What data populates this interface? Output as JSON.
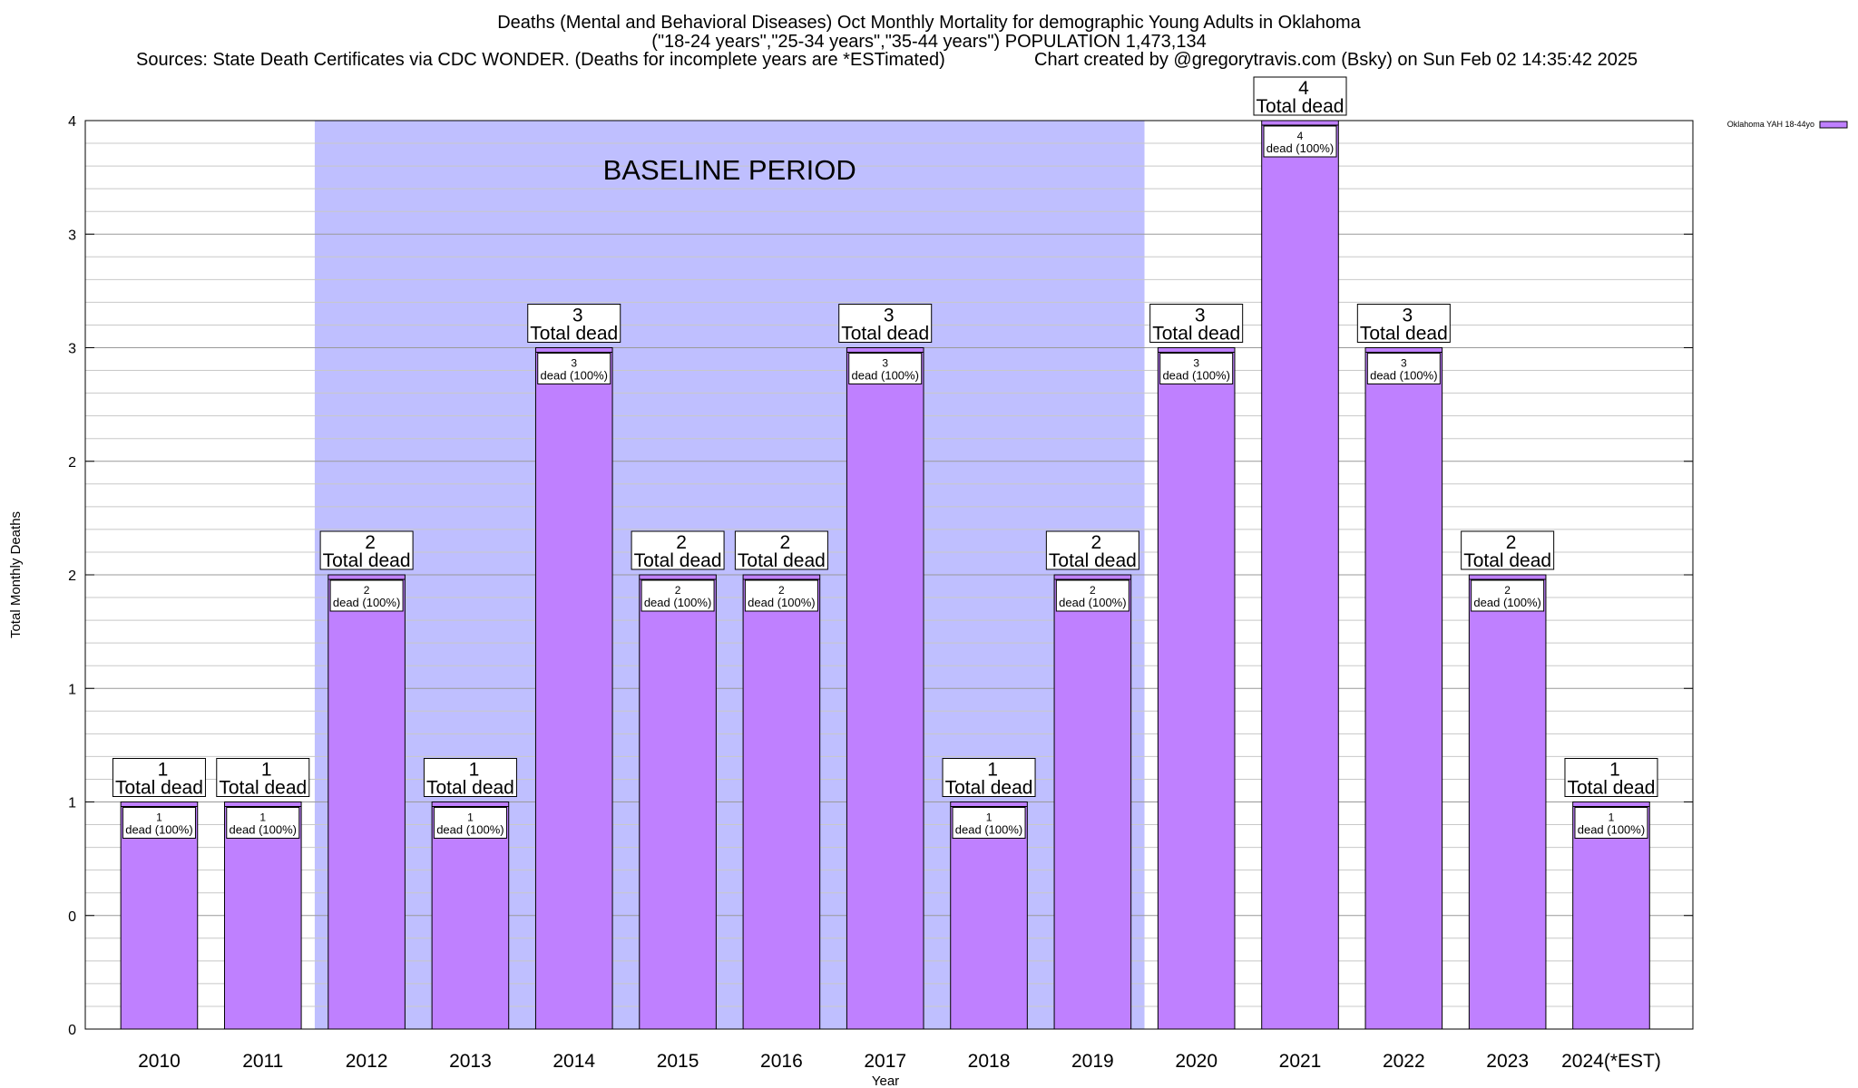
{
  "header": {
    "title_line1": "Deaths (Mental and Behavioral Diseases) Oct Monthly Mortality for demographic Young Adults in Oklahoma",
    "title_line2": "(\"18-24 years\",\"25-34 years\",\"35-44 years\") POPULATION 1,473,134",
    "sources": "Sources: State Death Certificates via CDC WONDER. (Deaths for incomplete years are *ESTimated)",
    "credit": "Chart created by @gregorytravis.com (Bsky) on Sun Feb 02 14:35:42 2025"
  },
  "chart_data": {
    "type": "bar",
    "xlabel": "Year",
    "ylabel": "Total Monthly Deaths",
    "ylim": [
      0,
      4
    ],
    "ytick_values": [
      0,
      0.5,
      1,
      1.5,
      2,
      2.5,
      3,
      3.5,
      4
    ],
    "ytick_labels": [
      "0",
      "0",
      "1",
      "1",
      "2",
      "2",
      "3",
      "3",
      "4"
    ],
    "categories": [
      "2010",
      "2011",
      "2012",
      "2013",
      "2014",
      "2015",
      "2016",
      "2017",
      "2018",
      "2019",
      "2020",
      "2021",
      "2022",
      "2023",
      "2024(*EST)"
    ],
    "series": [
      {
        "name": "Oklahoma YAH 18-44yo",
        "color": "#bf80ff",
        "values": [
          1,
          1,
          2,
          1,
          3,
          2,
          2,
          3,
          1,
          2,
          3,
          4,
          3,
          2,
          1
        ]
      }
    ],
    "total_label_suffix": "Total dead",
    "inner_label_suffix": "dead (100%)",
    "baseline": {
      "label": "BASELINE PERIOD",
      "from": "2012",
      "to": "2019",
      "color": "#bfbfff"
    },
    "legend_position": "top-right",
    "grid": true
  }
}
